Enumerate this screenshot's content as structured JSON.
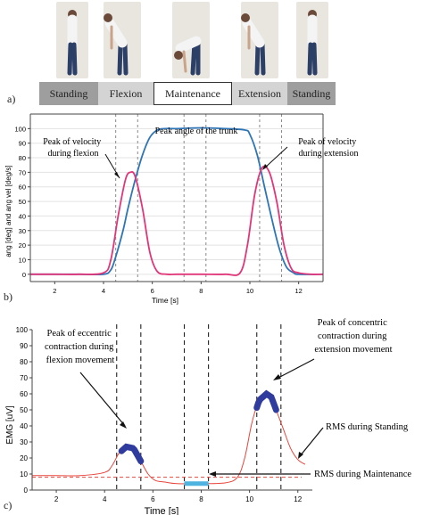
{
  "panel_a": {
    "label": "a)",
    "phases": [
      {
        "name": "Standing",
        "fill": "#9e9e9e"
      },
      {
        "name": "Flexion",
        "fill": "#d4d4d4"
      },
      {
        "name": "Maintenance",
        "fill": "#ffffff"
      },
      {
        "name": "Extension",
        "fill": "#d4d4d4"
      },
      {
        "name": "Standing",
        "fill": "#9e9e9e"
      }
    ]
  },
  "chart_data": [
    {
      "panel": "b)",
      "type": "line",
      "xlabel": "Time [s]",
      "ylabel": "ang [deg] and ang vel [deg/s]",
      "xlim": [
        1,
        13
      ],
      "ylim": [
        -5,
        110
      ],
      "xticks": [
        2,
        4,
        6,
        8,
        10,
        12
      ],
      "yticks": [
        0,
        10,
        20,
        30,
        40,
        50,
        60,
        70,
        80,
        90,
        100
      ],
      "vlines": [
        4.5,
        5.4,
        7.3,
        8.2,
        10.4,
        11.3
      ],
      "series": [
        {
          "color": "#2e75b6",
          "x": [
            1,
            2,
            3,
            4,
            4.3,
            4.5,
            4.8,
            5.0,
            5.3,
            5.6,
            5.9,
            6.2,
            6.5,
            7,
            8,
            9,
            9.8,
            10.0,
            10.3,
            10.6,
            10.9,
            11.2,
            11.5,
            11.8,
            12,
            13
          ],
          "y": [
            0,
            0,
            0,
            0,
            3,
            12,
            30,
            45,
            65,
            82,
            94,
            99,
            100,
            100,
            100.5,
            100,
            99,
            96,
            82,
            60,
            38,
            18,
            5,
            1,
            0,
            0
          ]
        },
        {
          "color": "#e0367a",
          "x": [
            1,
            2,
            3,
            4,
            4.3,
            4.6,
            4.9,
            5.1,
            5.3,
            5.6,
            5.9,
            6.2,
            6.6,
            7,
            8,
            9,
            9.6,
            9.9,
            10.2,
            10.5,
            10.8,
            11.1,
            11.4,
            11.7,
            12,
            12.5,
            13
          ],
          "y": [
            0,
            0,
            0,
            1,
            10,
            40,
            65,
            70,
            67,
            45,
            15,
            2,
            0,
            0,
            0,
            0,
            1,
            20,
            55,
            73,
            70,
            50,
            20,
            4,
            1,
            0,
            0
          ]
        }
      ],
      "annotations": [
        {
          "text": [
            "Peak of velocity",
            "during flexion"
          ]
        },
        {
          "text": [
            "Peak angle of the trunk"
          ]
        },
        {
          "text": [
            "Peak of velocity",
            "during extension"
          ]
        }
      ]
    },
    {
      "panel": "c)",
      "type": "line",
      "xlabel": "Time [s]",
      "ylabel": "EMG [uV]",
      "xlim": [
        1,
        12.6
      ],
      "ylim": [
        0,
        100
      ],
      "xticks": [
        2,
        4,
        6,
        8,
        10,
        12
      ],
      "yticks": [
        0,
        10,
        20,
        30,
        40,
        50,
        60,
        70,
        80,
        90,
        100
      ],
      "vlines": [
        4.5,
        5.5,
        7.3,
        8.3,
        10.3,
        11.3
      ],
      "threshold": 8,
      "series": [
        {
          "color": "#e8453c",
          "x": [
            1,
            2,
            3,
            4,
            4.3,
            4.6,
            4.9,
            5.2,
            5.5,
            5.8,
            6.1,
            6.5,
            7,
            8,
            9,
            9.5,
            9.8,
            10.1,
            10.4,
            10.7,
            10.9,
            11.1,
            11.4,
            11.7,
            12,
            12.3
          ],
          "y": [
            9,
            9,
            9,
            11,
            15,
            23,
            27,
            26,
            18,
            10,
            6,
            5,
            4,
            4,
            4.5,
            8,
            20,
            42,
            56,
            60,
            58,
            50,
            38,
            26,
            19,
            16
          ]
        }
      ],
      "highlights": [
        {
          "color": "#2f3c9e",
          "x": [
            4.7,
            5.5
          ]
        },
        {
          "color": "#2f3c9e",
          "x": [
            10.3,
            11.1
          ]
        },
        {
          "color": "#4fb3e0",
          "x": [
            7.3,
            8.3
          ],
          "y": 4
        }
      ],
      "annotations": [
        {
          "text": [
            "Peak of eccentric",
            "contraction during",
            "flexion movement"
          ]
        },
        {
          "text": [
            "Peak of concentric",
            "contraction during",
            "extension movement"
          ]
        },
        {
          "text": [
            "RMS during Standing"
          ]
        },
        {
          "text": [
            "RMS during Maintenance"
          ]
        }
      ]
    }
  ]
}
